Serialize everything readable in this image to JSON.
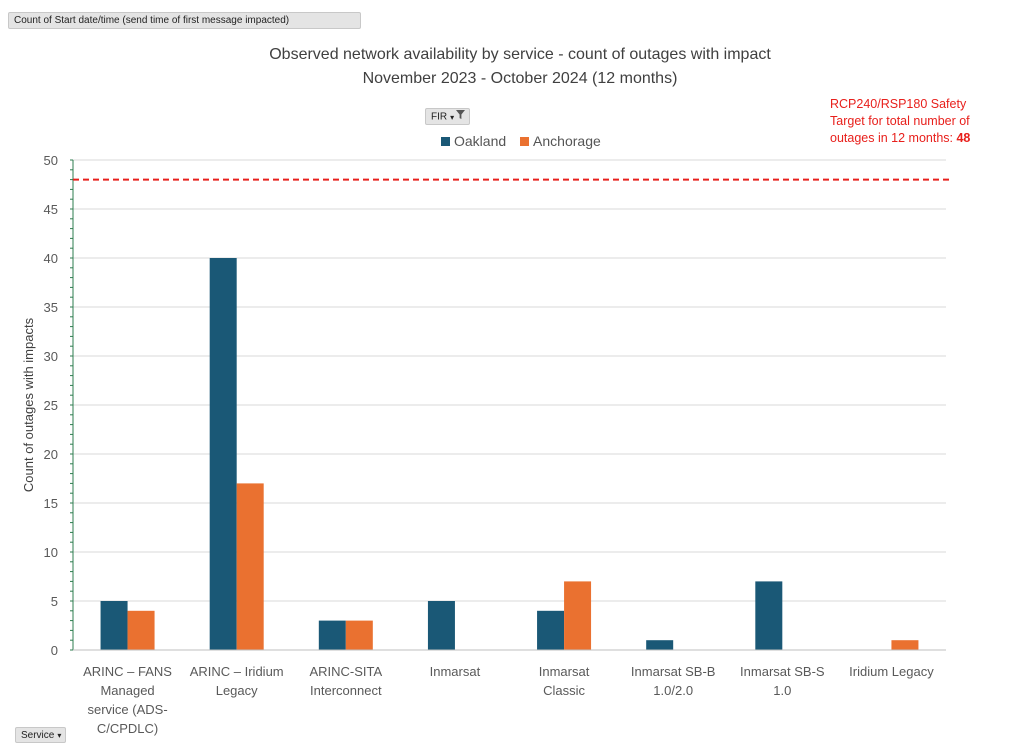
{
  "pivot": {
    "value_field": "Count of Start date/time (send time of first message impacted)",
    "filter_field": "FIR",
    "axis_field": "Service"
  },
  "colors": {
    "oakland": "#1a5876",
    "anchorage": "#ea7130",
    "target_line": "#e8201c",
    "grid": "#d9d9d9",
    "text": "#404040"
  },
  "icons": {
    "filter": "funnel-icon",
    "dropdown": "dropdown-arrow-icon"
  },
  "annotation": {
    "line1": "RCP240/RSP180 Safety",
    "line2": "Target for total number of",
    "line3": "outages in 12 months:",
    "value": "48"
  },
  "chart_data": {
    "type": "bar",
    "title": "Observed network availability by service - count of outages with impact",
    "subtitle": "November 2023 - October 2024 (12 months)",
    "xlabel": "",
    "ylabel": "Count of outages with impacts",
    "ylim": [
      0,
      50
    ],
    "yticks": [
      0,
      5,
      10,
      15,
      20,
      25,
      30,
      35,
      40,
      45,
      50
    ],
    "grid": true,
    "legend_position": "top",
    "categories": [
      [
        "ARINC – FANS",
        "Managed",
        "service (ADS-",
        "C/CPDLC)"
      ],
      [
        "ARINC – Iridium",
        "Legacy"
      ],
      [
        "ARINC-SITA",
        "Interconnect"
      ],
      [
        "Inmarsat"
      ],
      [
        "Inmarsat",
        "Classic"
      ],
      [
        "Inmarsat SB-B",
        "1.0/2.0"
      ],
      [
        "Inmarsat SB-S",
        "1.0"
      ],
      [
        "Iridium Legacy"
      ]
    ],
    "series": [
      {
        "name": "Oakland",
        "color": "#1a5876",
        "values": [
          5,
          40,
          3,
          5,
          4,
          1,
          7,
          null
        ]
      },
      {
        "name": "Anchorage",
        "color": "#ea7130",
        "values": [
          4,
          17,
          3,
          null,
          7,
          null,
          null,
          1
        ]
      }
    ],
    "reference_line": {
      "y": 48,
      "style": "dashed",
      "color": "#e8201c"
    }
  }
}
